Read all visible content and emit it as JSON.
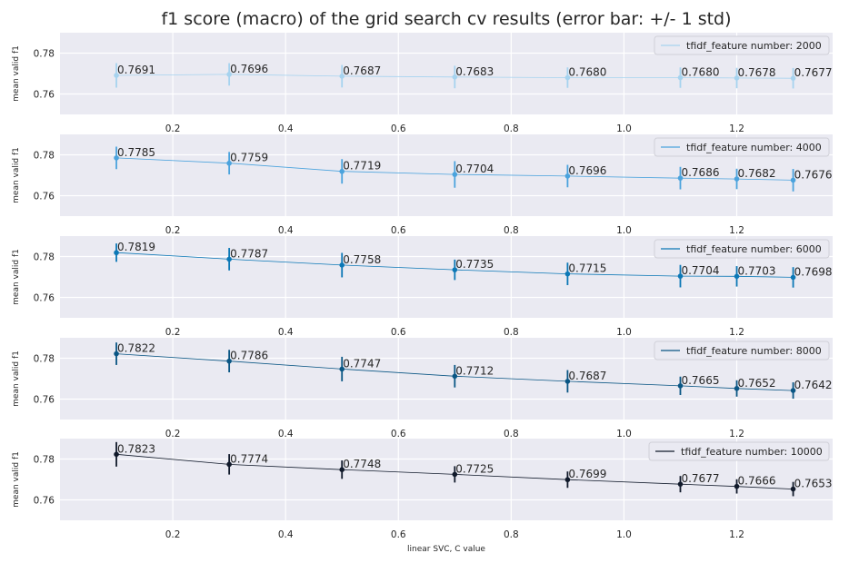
{
  "figure": {
    "title": "f1 score (macro) of the grid search cv results (error bar: +/- 1 std)",
    "xlabel": "linear SVC, C value"
  },
  "chart_data": [
    {
      "type": "line",
      "legend": "tfidf_feature number: 2000",
      "legend_loc": "top-right",
      "color": "#a6d3ef",
      "ylabel": "mean valid f1",
      "xlim": [
        0.0,
        1.37
      ],
      "ylim": [
        0.75,
        0.79
      ],
      "xticks": [
        0.2,
        0.4,
        0.6,
        0.8,
        1.0,
        1.2
      ],
      "xtick_labels": [
        "0.2",
        "0.4",
        "0.6",
        "0.8",
        "1.0",
        "1.2"
      ],
      "yticks": [
        0.76,
        0.78
      ],
      "ytick_labels": [
        "0.76",
        "0.78"
      ],
      "grid": true,
      "x": [
        0.1,
        0.3,
        0.5,
        0.7,
        0.9,
        1.1,
        1.2,
        1.3
      ],
      "y": [
        0.7691,
        0.7696,
        0.7687,
        0.7683,
        0.768,
        0.768,
        0.7678,
        0.7677
      ],
      "err": [
        0.006,
        0.0055,
        0.0055,
        0.0055,
        0.005,
        0.005,
        0.005,
        0.005
      ],
      "labels": [
        "0.7691",
        "0.7696",
        "0.7687",
        "0.7683",
        "0.7680",
        "0.7680",
        "0.7678",
        "0.7677"
      ]
    },
    {
      "type": "line",
      "legend": "tfidf_feature number: 4000",
      "legend_loc": "top-right",
      "color": "#4ba3dd",
      "ylabel": "mean valid f1",
      "xlim": [
        0.0,
        1.37
      ],
      "ylim": [
        0.75,
        0.79
      ],
      "xticks": [
        0.2,
        0.4,
        0.6,
        0.8,
        1.0,
        1.2
      ],
      "xtick_labels": [
        "0.2",
        "0.4",
        "0.6",
        "0.8",
        "1.0",
        "1.2"
      ],
      "yticks": [
        0.76,
        0.78
      ],
      "ytick_labels": [
        "0.76",
        "0.78"
      ],
      "grid": true,
      "x": [
        0.1,
        0.3,
        0.5,
        0.7,
        0.9,
        1.1,
        1.2,
        1.3
      ],
      "y": [
        0.7785,
        0.7759,
        0.7719,
        0.7704,
        0.7696,
        0.7686,
        0.7682,
        0.7676
      ],
      "err": [
        0.0055,
        0.0055,
        0.006,
        0.0065,
        0.0055,
        0.0055,
        0.005,
        0.0055
      ],
      "labels": [
        "0.7785",
        "0.7759",
        "0.7719",
        "0.7704",
        "0.7696",
        "0.7686",
        "0.7682",
        "0.7676"
      ]
    },
    {
      "type": "line",
      "legend": "tfidf_feature number: 6000",
      "legend_loc": "top-right",
      "color": "#0c78b6",
      "ylabel": "mean valid f1",
      "xlim": [
        0.0,
        1.37
      ],
      "ylim": [
        0.75,
        0.79
      ],
      "xticks": [
        0.2,
        0.4,
        0.6,
        0.8,
        1.0,
        1.2
      ],
      "xtick_labels": [
        "0.2",
        "0.4",
        "0.6",
        "0.8",
        "1.0",
        "1.2"
      ],
      "yticks": [
        0.76,
        0.78
      ],
      "ytick_labels": [
        "0.76",
        "0.78"
      ],
      "grid": true,
      "x": [
        0.1,
        0.3,
        0.5,
        0.7,
        0.9,
        1.1,
        1.2,
        1.3
      ],
      "y": [
        0.7819,
        0.7787,
        0.7758,
        0.7735,
        0.7715,
        0.7704,
        0.7703,
        0.7698
      ],
      "err": [
        0.0045,
        0.0055,
        0.006,
        0.005,
        0.0055,
        0.0055,
        0.005,
        0.005
      ],
      "labels": [
        "0.7819",
        "0.7787",
        "0.7758",
        "0.7735",
        "0.7715",
        "0.7704",
        "0.7703",
        "0.7698"
      ]
    },
    {
      "type": "line",
      "legend": "tfidf_feature number: 8000",
      "legend_loc": "top-right",
      "color": "#0a5684",
      "ylabel": "mean valid f1",
      "xlim": [
        0.0,
        1.37
      ],
      "ylim": [
        0.75,
        0.79
      ],
      "xticks": [
        0.2,
        0.4,
        0.6,
        0.8,
        1.0,
        1.2
      ],
      "xtick_labels": [
        "0.2",
        "0.4",
        "0.6",
        "0.8",
        "1.0",
        "1.2"
      ],
      "yticks": [
        0.76,
        0.78
      ],
      "ytick_labels": [
        "0.76",
        "0.78"
      ],
      "grid": true,
      "x": [
        0.1,
        0.3,
        0.5,
        0.7,
        0.9,
        1.1,
        1.2,
        1.3
      ],
      "y": [
        0.7822,
        0.7786,
        0.7747,
        0.7712,
        0.7687,
        0.7665,
        0.7652,
        0.7642
      ],
      "err": [
        0.0055,
        0.0055,
        0.006,
        0.0055,
        0.0055,
        0.0045,
        0.004,
        0.004
      ],
      "labels": [
        "0.7822",
        "0.7786",
        "0.7747",
        "0.7712",
        "0.7687",
        "0.7665",
        "0.7652",
        "0.7642"
      ]
    },
    {
      "type": "line",
      "legend": "tfidf_feature number: 10000",
      "legend_loc": "top-right",
      "color": "#111a2b",
      "ylabel": "mean valid f1",
      "xlim": [
        0.0,
        1.37
      ],
      "ylim": [
        0.75,
        0.79
      ],
      "xticks": [
        0.2,
        0.4,
        0.6,
        0.8,
        1.0,
        1.2
      ],
      "xtick_labels": [
        "0.2",
        "0.4",
        "0.6",
        "0.8",
        "1.0",
        "1.2"
      ],
      "yticks": [
        0.76,
        0.78
      ],
      "ytick_labels": [
        "0.76",
        "0.78"
      ],
      "grid": true,
      "x": [
        0.1,
        0.3,
        0.5,
        0.7,
        0.9,
        1.1,
        1.2,
        1.3
      ],
      "y": [
        0.7823,
        0.7774,
        0.7748,
        0.7725,
        0.7699,
        0.7677,
        0.7666,
        0.7653
      ],
      "err": [
        0.006,
        0.005,
        0.0045,
        0.004,
        0.004,
        0.004,
        0.0035,
        0.0035
      ],
      "labels": [
        "0.7823",
        "0.7774",
        "0.7748",
        "0.7725",
        "0.7699",
        "0.7677",
        "0.7666",
        "0.7653"
      ]
    }
  ]
}
